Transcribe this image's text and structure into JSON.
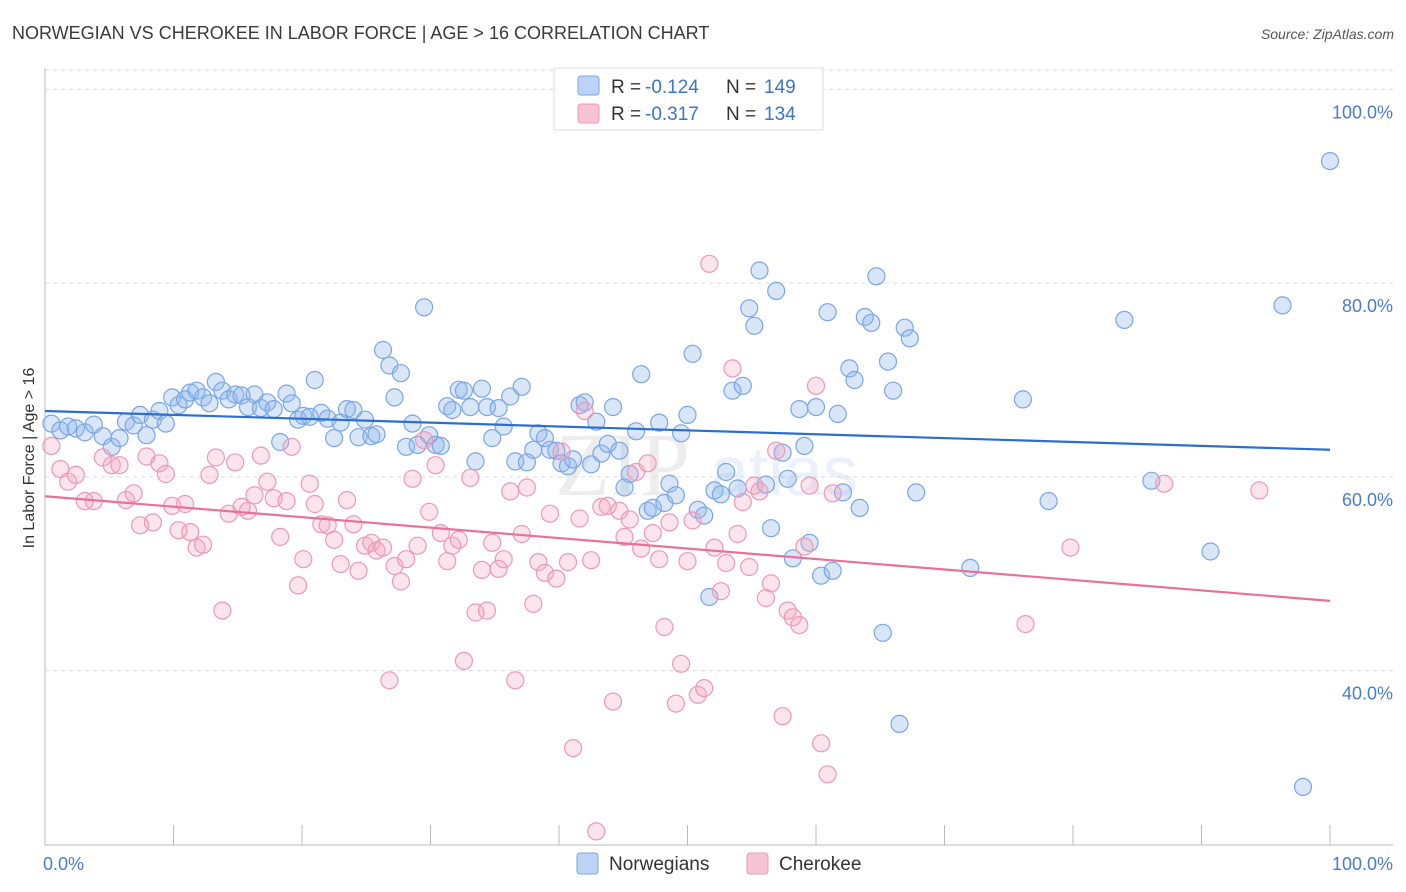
{
  "title": "NORWEGIAN VS CHEROKEE IN LABOR FORCE | AGE > 16 CORRELATION CHART",
  "source": "Source: ZipAtlas.com",
  "chart_data": {
    "type": "scatter",
    "title": "NORWEGIAN VS CHEROKEE IN LABOR FORCE | AGE > 16 CORRELATION CHART",
    "xlabel": "",
    "ylabel": "In Labor Force | Age > 16",
    "xlim": [
      0,
      100
    ],
    "ylim": [
      22,
      102
    ],
    "x_tick_labels": [
      "0.0%",
      "100.0%"
    ],
    "y_ticks": [
      40,
      60,
      80,
      100
    ],
    "y_tick_labels": [
      "40.0%",
      "60.0%",
      "80.0%",
      "100.0%"
    ],
    "grid": "horizontal dashed",
    "legend_placement": "top-center",
    "colors": {
      "norwegians": "#8fb6ec",
      "norwegians_line": "#2a6fd0",
      "cherokee": "#f3a6c0",
      "cherokee_line": "#e8709a"
    },
    "series": [
      {
        "name": "Norwegians",
        "stats": {
          "r_label": "R =",
          "r": "-0.124",
          "n_label": "N =",
          "n": "149"
        },
        "trend": {
          "x": [
            0,
            100
          ],
          "y": [
            66.8,
            62.8
          ]
        },
        "points": [
          [
            0.5,
            65.5
          ],
          [
            1.2,
            64.8
          ],
          [
            1.8,
            65.2
          ],
          [
            2.4,
            65.0
          ],
          [
            3.1,
            64.6
          ],
          [
            3.8,
            65.4
          ],
          [
            4.5,
            64.2
          ],
          [
            5.2,
            63.1
          ],
          [
            5.8,
            64.0
          ],
          [
            6.3,
            65.7
          ],
          [
            6.9,
            65.3
          ],
          [
            7.4,
            66.4
          ],
          [
            7.9,
            64.3
          ],
          [
            8.4,
            65.9
          ],
          [
            8.9,
            66.8
          ],
          [
            9.4,
            65.5
          ],
          [
            9.9,
            68.2
          ],
          [
            10.4,
            67.4
          ],
          [
            10.9,
            68.0
          ],
          [
            11.3,
            68.7
          ],
          [
            11.8,
            68.9
          ],
          [
            12.3,
            68.2
          ],
          [
            12.8,
            67.6
          ],
          [
            13.3,
            69.8
          ],
          [
            13.8,
            68.9
          ],
          [
            14.3,
            68.0
          ],
          [
            14.8,
            68.5
          ],
          [
            15.3,
            68.4
          ],
          [
            15.8,
            67.2
          ],
          [
            16.3,
            68.5
          ],
          [
            16.8,
            67.1
          ],
          [
            17.3,
            67.7
          ],
          [
            17.8,
            67.0
          ],
          [
            18.3,
            63.6
          ],
          [
            18.8,
            68.6
          ],
          [
            19.2,
            67.6
          ],
          [
            19.7,
            65.9
          ],
          [
            20.1,
            66.3
          ],
          [
            20.6,
            66.2
          ],
          [
            21.0,
            70.0
          ],
          [
            21.5,
            66.6
          ],
          [
            22.0,
            66.0
          ],
          [
            22.5,
            64.0
          ],
          [
            23.0,
            65.6
          ],
          [
            23.5,
            67.0
          ],
          [
            24.0,
            66.9
          ],
          [
            24.4,
            64.1
          ],
          [
            24.9,
            65.9
          ],
          [
            25.4,
            64.2
          ],
          [
            25.8,
            64.4
          ],
          [
            26.3,
            73.1
          ],
          [
            26.8,
            71.5
          ],
          [
            27.2,
            68.2
          ],
          [
            27.7,
            70.7
          ],
          [
            28.1,
            63.1
          ],
          [
            28.6,
            65.5
          ],
          [
            29.0,
            63.3
          ],
          [
            29.5,
            77.5
          ],
          [
            29.9,
            64.3
          ],
          [
            30.4,
            63.3
          ],
          [
            30.8,
            63.2
          ],
          [
            31.3,
            67.3
          ],
          [
            31.7,
            66.9
          ],
          [
            32.2,
            69.0
          ],
          [
            32.6,
            68.9
          ],
          [
            33.1,
            67.2
          ],
          [
            33.5,
            61.6
          ],
          [
            34.0,
            69.1
          ],
          [
            34.4,
            67.2
          ],
          [
            34.8,
            64.0
          ],
          [
            35.3,
            67.1
          ],
          [
            35.7,
            65.2
          ],
          [
            36.2,
            68.3
          ],
          [
            36.6,
            61.6
          ],
          [
            37.1,
            69.3
          ],
          [
            37.5,
            61.5
          ],
          [
            38.0,
            62.8
          ],
          [
            38.4,
            64.5
          ],
          [
            38.9,
            64.0
          ],
          [
            39.3,
            62.8
          ],
          [
            39.8,
            62.7
          ],
          [
            40.2,
            61.4
          ],
          [
            40.7,
            61.1
          ],
          [
            41.1,
            61.8
          ],
          [
            41.6,
            67.4
          ],
          [
            42.0,
            67.7
          ],
          [
            42.5,
            61.3
          ],
          [
            42.9,
            65.7
          ],
          [
            43.3,
            62.4
          ],
          [
            43.8,
            63.4
          ],
          [
            44.2,
            67.2
          ],
          [
            44.7,
            62.7
          ],
          [
            45.1,
            58.9
          ],
          [
            45.5,
            60.3
          ],
          [
            46.0,
            64.7
          ],
          [
            46.4,
            70.6
          ],
          [
            46.9,
            56.5
          ],
          [
            47.3,
            56.8
          ],
          [
            47.8,
            65.6
          ],
          [
            48.2,
            57.3
          ],
          [
            48.6,
            59.3
          ],
          [
            49.1,
            58.1
          ],
          [
            49.5,
            64.5
          ],
          [
            50.0,
            66.4
          ],
          [
            50.4,
            72.7
          ],
          [
            50.8,
            56.6
          ],
          [
            51.3,
            56.0
          ],
          [
            51.7,
            47.6
          ],
          [
            52.1,
            58.6
          ],
          [
            52.6,
            58.2
          ],
          [
            53.0,
            60.5
          ],
          [
            53.5,
            68.9
          ],
          [
            53.9,
            58.8
          ],
          [
            54.3,
            69.4
          ],
          [
            54.8,
            77.4
          ],
          [
            55.2,
            75.6
          ],
          [
            55.6,
            81.3
          ],
          [
            56.1,
            59.2
          ],
          [
            56.5,
            54.7
          ],
          [
            56.9,
            79.2
          ],
          [
            57.4,
            62.5
          ],
          [
            57.8,
            59.8
          ],
          [
            58.2,
            51.6
          ],
          [
            58.7,
            67.0
          ],
          [
            59.1,
            63.2
          ],
          [
            59.5,
            53.2
          ],
          [
            60.0,
            67.2
          ],
          [
            60.4,
            49.8
          ],
          [
            60.9,
            77.0
          ],
          [
            61.3,
            50.3
          ],
          [
            61.7,
            66.5
          ],
          [
            62.1,
            58.4
          ],
          [
            62.6,
            71.2
          ],
          [
            63.0,
            70.0
          ],
          [
            63.4,
            56.8
          ],
          [
            63.8,
            76.5
          ],
          [
            64.3,
            75.9
          ],
          [
            64.7,
            80.7
          ],
          [
            65.2,
            43.9
          ],
          [
            65.6,
            71.9
          ],
          [
            66.0,
            68.9
          ],
          [
            66.5,
            34.5
          ],
          [
            66.9,
            75.4
          ],
          [
            67.3,
            74.3
          ],
          [
            67.8,
            58.4
          ],
          [
            72.0,
            50.6
          ],
          [
            76.1,
            68.0
          ],
          [
            78.1,
            57.5
          ],
          [
            84.0,
            76.2
          ],
          [
            86.1,
            59.6
          ],
          [
            90.7,
            52.3
          ],
          [
            96.3,
            77.7
          ],
          [
            97.9,
            28.0
          ],
          [
            100.0,
            92.6
          ]
        ]
      },
      {
        "name": "Cherokee",
        "stats": {
          "r_label": "R =",
          "r": "-0.317",
          "n_label": "N =",
          "n": "134"
        },
        "trend": {
          "x": [
            0,
            100
          ],
          "y": [
            58.0,
            47.2
          ]
        },
        "points": [
          [
            0.5,
            63.2
          ],
          [
            1.2,
            60.8
          ],
          [
            1.8,
            59.5
          ],
          [
            2.4,
            60.2
          ],
          [
            3.1,
            57.5
          ],
          [
            3.8,
            57.5
          ],
          [
            4.5,
            62.0
          ],
          [
            5.2,
            61.2
          ],
          [
            5.8,
            61.2
          ],
          [
            6.3,
            57.6
          ],
          [
            6.9,
            58.3
          ],
          [
            7.4,
            55.0
          ],
          [
            7.9,
            62.1
          ],
          [
            8.4,
            55.3
          ],
          [
            8.9,
            61.4
          ],
          [
            9.4,
            60.3
          ],
          [
            9.9,
            57.0
          ],
          [
            10.4,
            54.5
          ],
          [
            10.9,
            57.2
          ],
          [
            11.3,
            54.3
          ],
          [
            11.8,
            52.7
          ],
          [
            12.3,
            53.0
          ],
          [
            12.8,
            60.2
          ],
          [
            13.3,
            62.0
          ],
          [
            13.8,
            46.2
          ],
          [
            14.3,
            56.2
          ],
          [
            14.8,
            61.5
          ],
          [
            15.3,
            56.9
          ],
          [
            15.8,
            56.5
          ],
          [
            16.3,
            58.1
          ],
          [
            16.8,
            62.2
          ],
          [
            17.3,
            59.5
          ],
          [
            17.8,
            57.8
          ],
          [
            18.3,
            53.8
          ],
          [
            18.8,
            57.5
          ],
          [
            19.2,
            63.1
          ],
          [
            19.7,
            48.8
          ],
          [
            20.1,
            51.5
          ],
          [
            20.6,
            59.3
          ],
          [
            21.0,
            57.2
          ],
          [
            21.5,
            55.1
          ],
          [
            22.0,
            55.0
          ],
          [
            22.5,
            53.5
          ],
          [
            23.0,
            51.0
          ],
          [
            23.5,
            57.6
          ],
          [
            24.0,
            55.1
          ],
          [
            24.4,
            50.3
          ],
          [
            24.9,
            52.9
          ],
          [
            25.4,
            53.2
          ],
          [
            25.8,
            52.4
          ],
          [
            26.3,
            52.7
          ],
          [
            26.8,
            39.0
          ],
          [
            27.2,
            50.8
          ],
          [
            27.7,
            49.2
          ],
          [
            28.1,
            51.5
          ],
          [
            28.6,
            59.8
          ],
          [
            29.0,
            52.9
          ],
          [
            29.5,
            63.8
          ],
          [
            29.9,
            56.4
          ],
          [
            30.4,
            61.2
          ],
          [
            30.8,
            54.2
          ],
          [
            31.3,
            51.3
          ],
          [
            31.7,
            52.9
          ],
          [
            32.2,
            53.5
          ],
          [
            32.6,
            41.0
          ],
          [
            33.1,
            59.9
          ],
          [
            33.5,
            46.0
          ],
          [
            34.0,
            50.4
          ],
          [
            34.4,
            46.2
          ],
          [
            34.8,
            53.2
          ],
          [
            35.3,
            50.5
          ],
          [
            35.7,
            51.5
          ],
          [
            36.2,
            58.5
          ],
          [
            36.6,
            39.0
          ],
          [
            37.1,
            54.1
          ],
          [
            37.5,
            58.9
          ],
          [
            38.0,
            46.9
          ],
          [
            38.4,
            51.2
          ],
          [
            38.9,
            50.1
          ],
          [
            39.3,
            56.2
          ],
          [
            39.8,
            49.5
          ],
          [
            40.2,
            62.6
          ],
          [
            40.7,
            51.2
          ],
          [
            41.1,
            32.0
          ],
          [
            41.6,
            55.7
          ],
          [
            42.0,
            66.8
          ],
          [
            42.5,
            51.4
          ],
          [
            42.9,
            23.4
          ],
          [
            43.3,
            56.9
          ],
          [
            43.8,
            57.0
          ],
          [
            44.2,
            36.8
          ],
          [
            44.7,
            56.5
          ],
          [
            45.1,
            53.8
          ],
          [
            45.5,
            55.6
          ],
          [
            46.0,
            60.5
          ],
          [
            46.4,
            52.6
          ],
          [
            46.9,
            61.4
          ],
          [
            47.3,
            54.2
          ],
          [
            47.8,
            51.5
          ],
          [
            48.2,
            44.5
          ],
          [
            48.6,
            55.3
          ],
          [
            49.1,
            36.6
          ],
          [
            49.5,
            40.7
          ],
          [
            50.0,
            51.3
          ],
          [
            50.4,
            55.5
          ],
          [
            50.8,
            37.5
          ],
          [
            51.3,
            38.2
          ],
          [
            51.7,
            82.0
          ],
          [
            52.1,
            52.7
          ],
          [
            52.6,
            48.2
          ],
          [
            53.0,
            51.1
          ],
          [
            53.5,
            71.2
          ],
          [
            53.9,
            54.1
          ],
          [
            54.3,
            57.4
          ],
          [
            54.8,
            50.7
          ],
          [
            55.2,
            59.1
          ],
          [
            55.6,
            58.5
          ],
          [
            56.1,
            47.5
          ],
          [
            56.5,
            49.0
          ],
          [
            56.9,
            62.7
          ],
          [
            57.4,
            35.3
          ],
          [
            57.8,
            46.2
          ],
          [
            58.2,
            45.5
          ],
          [
            58.7,
            44.7
          ],
          [
            59.1,
            52.8
          ],
          [
            59.5,
            59.1
          ],
          [
            60.0,
            69.4
          ],
          [
            60.4,
            32.5
          ],
          [
            60.9,
            29.3
          ],
          [
            61.3,
            58.3
          ],
          [
            76.3,
            44.8
          ],
          [
            79.8,
            52.7
          ],
          [
            87.1,
            59.3
          ],
          [
            94.5,
            58.6
          ]
        ]
      }
    ]
  },
  "legend": {
    "items": [
      {
        "label": "Norwegians"
      },
      {
        "label": "Cherokee"
      }
    ]
  }
}
